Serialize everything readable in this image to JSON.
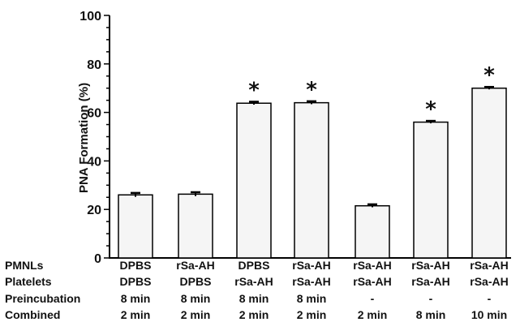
{
  "chart_data": {
    "type": "bar",
    "ylabel": "PNA Formation (%)",
    "ylim": [
      0,
      100
    ],
    "yticks": [
      0,
      20,
      40,
      60,
      80,
      100
    ],
    "values": [
      26,
      26.3,
      63.8,
      64,
      21.5,
      56,
      70
    ],
    "errors": [
      0.8,
      0.8,
      0.6,
      0.6,
      0.6,
      0.5,
      0.5
    ],
    "significant": [
      false,
      false,
      true,
      true,
      false,
      true,
      true
    ],
    "significance_marker": "*",
    "bar_color": "#f5f5f5",
    "edge_color": "#000000",
    "category_table": {
      "rows": [
        {
          "label": "PMNLs",
          "values": [
            "DPBS",
            "rSa-AH",
            "DPBS",
            "rSa-AH",
            "rSa-AH",
            "rSa-AH",
            "rSa-AH"
          ]
        },
        {
          "label": "Platelets",
          "values": [
            "DPBS",
            "DPBS",
            "rSa-AH",
            "rSa-AH",
            "rSa-AH",
            "rSa-AH",
            "rSa-AH"
          ]
        },
        {
          "label": "Preincubation",
          "values": [
            "8 min",
            "8 min",
            "8 min",
            "8 min",
            "-",
            "-",
            "-"
          ]
        },
        {
          "label": "Combined",
          "values": [
            "2 min",
            "2 min",
            "2 min",
            "2 min",
            "2 min",
            "8 min",
            "10 min"
          ]
        }
      ]
    }
  }
}
